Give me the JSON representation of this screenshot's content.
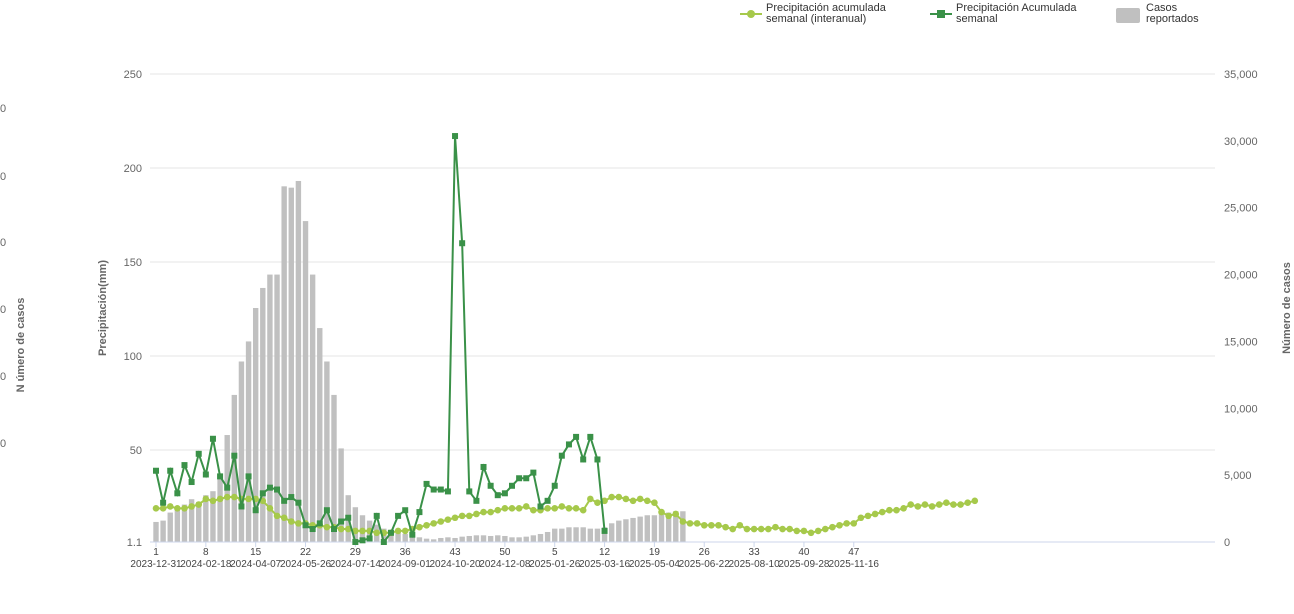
{
  "legend": {
    "interanual": "Precipitación acumulada semanal (interanual)",
    "acumulada": "Precipitación Acumulada semanal",
    "casos": "Casos reportados"
  },
  "chart_data": {
    "type": "bar",
    "y_left_label": "Precipitación(mm)",
    "y_right_label": "Número de casos",
    "y_far_left_label": "N úmero de casos",
    "y_left_ticks": [
      "1.1",
      "50",
      "100",
      "150",
      "200",
      "250"
    ],
    "y_left_range": [
      1.1,
      250
    ],
    "y_right_ticks": [
      "0",
      "5,000",
      "10,000",
      "15,000",
      "20,000",
      "25,000",
      "30,000",
      "35,000"
    ],
    "y_right_range": [
      0,
      35000
    ],
    "x_week_labels": [
      "1",
      "8",
      "15",
      "22",
      "29",
      "36",
      "43",
      "50",
      "5",
      "12",
      "19",
      "26",
      "33",
      "40",
      "47"
    ],
    "x_date_labels": [
      "2023-12-31",
      "2024-02-18",
      "2024-04-07",
      "2024-05-26",
      "2024-07-14",
      "2024-09-01",
      "2024-10-20",
      "2024-12-08",
      "2025-01-26",
      "2025-03-16",
      "2025-05-04",
      "2025-06-22",
      "2025-08-10",
      "2025-09-28",
      "2025-11-16"
    ],
    "colors": {
      "interanual": "#a6c94b",
      "acumulada": "#3a9148",
      "casos": "#c0c0c0"
    },
    "series": [
      {
        "name": "Casos reportados",
        "axis": "right",
        "values": [
          1500,
          1600,
          2200,
          2500,
          2800,
          3200,
          3000,
          3500,
          3800,
          5000,
          8000,
          11000,
          13500,
          15000,
          17500,
          19000,
          20000,
          20000,
          26600,
          26500,
          27000,
          24000,
          20000,
          16000,
          13500,
          11000,
          7000,
          3500,
          2600,
          2000,
          1600,
          1300,
          1000,
          800,
          700,
          600,
          450,
          350,
          250,
          200,
          300,
          350,
          300,
          400,
          450,
          500,
          500,
          450,
          500,
          450,
          350,
          350,
          400,
          500,
          600,
          750,
          1000,
          1000,
          1100,
          1100,
          1100,
          1000,
          1000,
          1100,
          1400,
          1600,
          1700,
          1800,
          1900,
          2000,
          2000,
          2200,
          2200,
          2300,
          2300
        ]
      },
      {
        "name": "Precipitación Acumulada semanal",
        "axis": "left",
        "values": [
          39,
          22,
          39,
          27,
          42,
          33,
          48,
          37,
          56,
          36,
          30,
          47,
          20,
          36,
          18,
          27,
          30,
          29,
          23,
          25,
          22,
          10,
          8,
          11,
          18,
          8,
          12,
          14,
          1.1,
          2,
          3,
          15,
          1.1,
          6,
          15,
          18,
          5,
          17,
          32,
          29,
          29,
          28,
          217,
          160,
          28,
          23,
          41,
          31,
          26,
          27,
          31,
          35,
          35,
          38,
          20,
          23,
          31,
          47,
          53,
          57,
          45,
          57,
          45,
          7
        ],
        "start_week_index": 0
      },
      {
        "name": "Precipitación acumulada semanal (interanual)",
        "axis": "left",
        "values": [
          19,
          19,
          20,
          19,
          19,
          20,
          21,
          24,
          23,
          24,
          25,
          25,
          24,
          24,
          24,
          23,
          19,
          15,
          14,
          12,
          11,
          11,
          10,
          10,
          9,
          9,
          8,
          8,
          7,
          7,
          7,
          6,
          6,
          6,
          7,
          7,
          8,
          9,
          10,
          11,
          12,
          13,
          14,
          15,
          15,
          16,
          17,
          17,
          18,
          19,
          19,
          19,
          20,
          18,
          18,
          19,
          19,
          20,
          19,
          19,
          18,
          24,
          22,
          23,
          25,
          25,
          24,
          23,
          24,
          23,
          22,
          17,
          15,
          16,
          12,
          11,
          11,
          10,
          10,
          10,
          9,
          8,
          10,
          8,
          8,
          8,
          8,
          9,
          8,
          8,
          7,
          7,
          6,
          7,
          8,
          9,
          10,
          11,
          11,
          14,
          15,
          16,
          17,
          18,
          18,
          19,
          21,
          20,
          21,
          20,
          21,
          22,
          21,
          21,
          22,
          23
        ]
      }
    ]
  }
}
